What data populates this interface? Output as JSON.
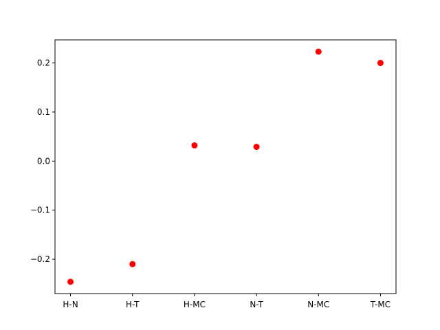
{
  "chart_data": {
    "type": "scatter",
    "categories": [
      "H-N",
      "H-T",
      "H-MC",
      "N-T",
      "N-MC",
      "T-MC"
    ],
    "series": [
      {
        "values": [
          -0.246,
          -0.21,
          0.032,
          0.029,
          0.223,
          0.2
        ]
      }
    ],
    "yticks": [
      -0.2,
      -0.1,
      0.0,
      0.1,
      0.2
    ],
    "ytick_labels": [
      "−0.2",
      "−0.1",
      "0.0",
      "0.1",
      "0.2"
    ],
    "ylim": [
      -0.27,
      0.247
    ],
    "marker_color": "#ff0000",
    "grid": false,
    "legend": "none"
  }
}
